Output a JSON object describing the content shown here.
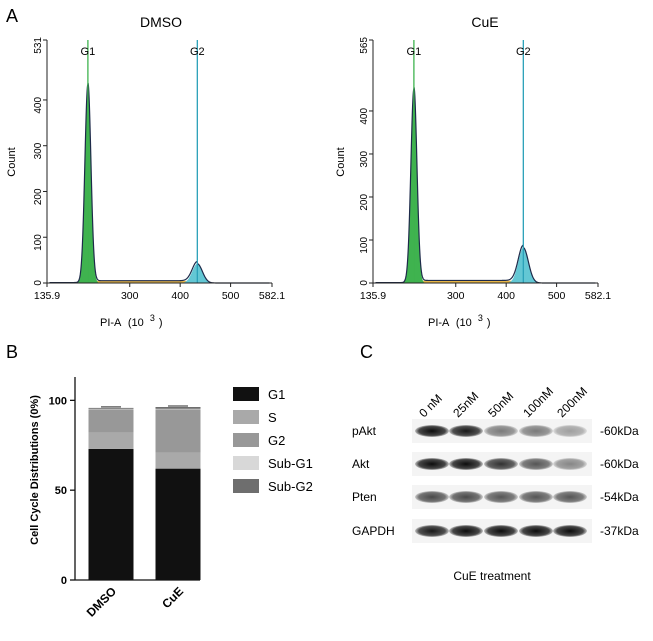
{
  "panels": {
    "a": {
      "letter": "A"
    },
    "b": {
      "letter": "B"
    },
    "c": {
      "letter": "C"
    }
  },
  "chart_data": [
    {
      "type": "area",
      "panel": "A-left",
      "title": "DMSO",
      "xlabel": "PI-A",
      "xlabel_unit": "(10",
      "xlabel_exp": "3",
      "xlabel_close": ")",
      "ylabel": "Count",
      "xlim": [
        135.9,
        582.1
      ],
      "ylim": [
        0,
        531
      ],
      "x_ticks": [
        {
          "value": 135.9,
          "label": "135.9"
        },
        {
          "value": 300,
          "label": "300"
        },
        {
          "value": 400,
          "label": "400"
        },
        {
          "value": 500,
          "label": "500"
        },
        {
          "value": 582.1,
          "label": "582.1"
        }
      ],
      "y_ticks": [
        {
          "value": 0,
          "label": "0"
        },
        {
          "value": 100,
          "label": "100"
        },
        {
          "value": 200,
          "label": "200"
        },
        {
          "value": 300,
          "label": "300"
        },
        {
          "value": 400,
          "label": "400"
        },
        {
          "value": 531,
          "label": "531"
        }
      ],
      "markers": [
        {
          "label": "G1",
          "x": 217
        },
        {
          "label": "G2",
          "x": 434
        }
      ],
      "peaks": [
        {
          "name": "G1",
          "center": 217,
          "height": 433,
          "width": 6,
          "color": "#2ea84a"
        },
        {
          "name": "G2",
          "center": 434,
          "height": 42,
          "width": 10,
          "color": "#5fc6d3"
        }
      ],
      "s_phase_level": 5,
      "colors": {
        "g1": "#3fb34f",
        "s": "#e0a31a",
        "g2": "#63c7d4",
        "fit": "#1e2a4a",
        "marker": "#2aa0b8"
      }
    },
    {
      "type": "area",
      "panel": "A-right",
      "title": "CuE",
      "xlabel": "PI-A",
      "xlabel_unit": "(10",
      "xlabel_exp": "3",
      "xlabel_close": ")",
      "ylabel": "Count",
      "xlim": [
        135.9,
        582.1
      ],
      "ylim": [
        0,
        565
      ],
      "x_ticks": [
        {
          "value": 135.9,
          "label": "135.9"
        },
        {
          "value": 300,
          "label": "300"
        },
        {
          "value": 400,
          "label": "400"
        },
        {
          "value": 500,
          "label": "500"
        },
        {
          "value": 582.1,
          "label": "582.1"
        }
      ],
      "y_ticks": [
        {
          "value": 0,
          "label": "0"
        },
        {
          "value": 100,
          "label": "100"
        },
        {
          "value": 200,
          "label": "200"
        },
        {
          "value": 300,
          "label": "300"
        },
        {
          "value": 400,
          "label": "400"
        },
        {
          "value": 565,
          "label": "565"
        }
      ],
      "markers": [
        {
          "label": "G1",
          "x": 217
        },
        {
          "label": "G2",
          "x": 434
        }
      ],
      "peaks": [
        {
          "name": "G1",
          "center": 217,
          "height": 450,
          "width": 6,
          "color": "#2ea84a"
        },
        {
          "name": "G2",
          "center": 434,
          "height": 82,
          "width": 10,
          "color": "#5fc6d3"
        }
      ],
      "s_phase_level": 6,
      "colors": {
        "g1": "#3fb34f",
        "s": "#e0a31a",
        "g2": "#63c7d4",
        "fit": "#1e2a4a",
        "marker": "#2aa0b8"
      }
    },
    {
      "type": "bar",
      "panel": "B",
      "stacked": true,
      "title": "",
      "ylabel": "Cell Cycle Distributions (0%)",
      "ylim": [
        0,
        113
      ],
      "y_ticks": [
        {
          "value": 0,
          "label": "0"
        },
        {
          "value": 50,
          "label": "50"
        },
        {
          "value": 100,
          "label": "100"
        }
      ],
      "categories": [
        "DMSO",
        "CuE"
      ],
      "series": [
        {
          "name": "G1",
          "values": [
            73,
            62
          ],
          "color": "#111111"
        },
        {
          "name": "S",
          "values": [
            9,
            9
          ],
          "color": "#a9a9a9"
        },
        {
          "name": "G2",
          "values": [
            13,
            24
          ],
          "color": "#989898"
        },
        {
          "name": "Sub-G1",
          "values": [
            0.3,
            0.3
          ],
          "color": "#d8d8d8"
        },
        {
          "name": "Sub-G2",
          "values": [
            0.5,
            1
          ],
          "color": "#6e6e6e"
        }
      ],
      "legend_position": "right"
    }
  ],
  "western_blot": {
    "concentrations": [
      "0 nM",
      "25nM",
      "50nM",
      "100nM",
      "200nM"
    ],
    "rows": [
      {
        "protein": "pAkt",
        "size": "-60kDa",
        "intensities": [
          0.95,
          0.9,
          0.5,
          0.5,
          0.35
        ]
      },
      {
        "protein": "Akt",
        "size": "-60kDa",
        "intensities": [
          0.95,
          0.95,
          0.8,
          0.65,
          0.45
        ]
      },
      {
        "protein": "Pten",
        "size": "-54kDa",
        "intensities": [
          0.7,
          0.7,
          0.65,
          0.65,
          0.65
        ]
      },
      {
        "protein": "GAPDH",
        "size": "-37kDa",
        "intensities": [
          0.9,
          0.95,
          0.95,
          0.95,
          0.95
        ]
      }
    ],
    "caption": "CuE treatment"
  }
}
